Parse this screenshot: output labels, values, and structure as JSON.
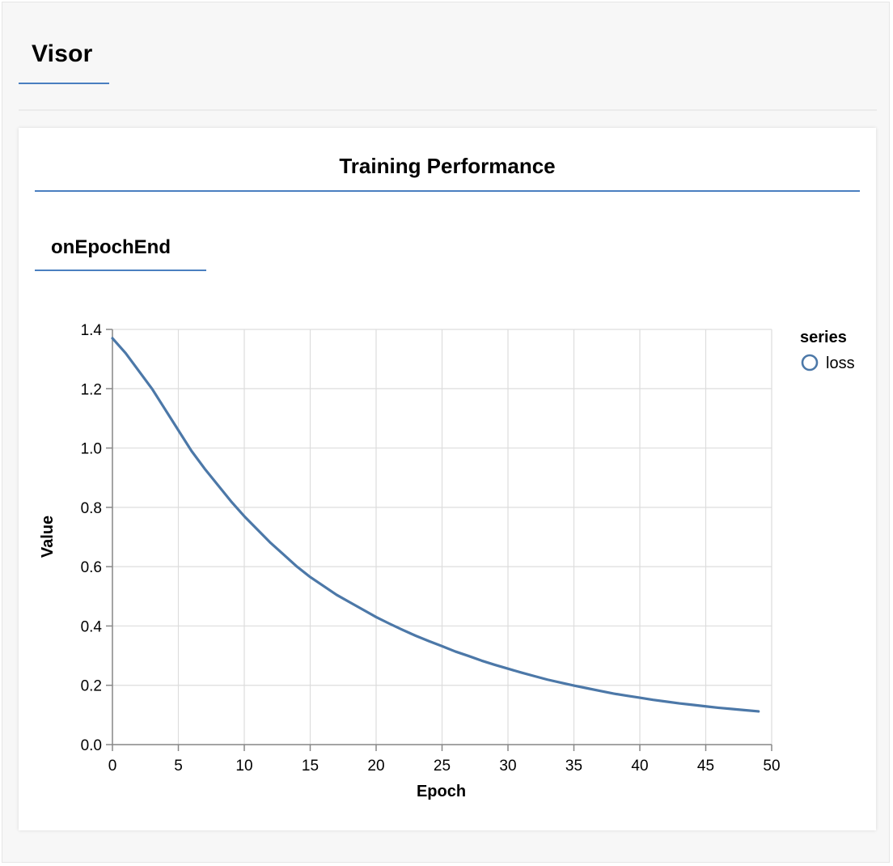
{
  "visor": {
    "title": "Visor"
  },
  "card": {
    "title": "Training Performance",
    "surface_label": "onEpochEnd"
  },
  "colors": {
    "accent": "#4a7fc0",
    "series_loss": "#4c78a8",
    "grid": "#dddddd",
    "axis": "#888888"
  },
  "chart_data": {
    "type": "line",
    "xlabel": "Epoch",
    "ylabel": "Value",
    "xlim": [
      0,
      50
    ],
    "ylim": [
      0,
      1.4
    ],
    "xticks": [
      "0",
      "5",
      "10",
      "15",
      "20",
      "25",
      "30",
      "35",
      "40",
      "45",
      "50"
    ],
    "yticks": [
      "0.0",
      "0.2",
      "0.4",
      "0.6",
      "0.8",
      "1.0",
      "1.2",
      "1.4"
    ],
    "grid": true,
    "legend": {
      "title": "series",
      "placement": "right"
    },
    "series": [
      {
        "name": "loss",
        "x": [
          0,
          1,
          2,
          3,
          4,
          5,
          6,
          7,
          8,
          9,
          10,
          11,
          12,
          13,
          14,
          15,
          16,
          17,
          18,
          19,
          20,
          21,
          22,
          23,
          24,
          25,
          26,
          27,
          28,
          29,
          30,
          31,
          32,
          33,
          34,
          35,
          36,
          37,
          38,
          39,
          40,
          41,
          42,
          43,
          44,
          45,
          46,
          47,
          48,
          49
        ],
        "values": [
          1.37,
          1.32,
          1.26,
          1.2,
          1.13,
          1.06,
          0.99,
          0.93,
          0.875,
          0.82,
          0.77,
          0.725,
          0.68,
          0.64,
          0.6,
          0.565,
          0.535,
          0.505,
          0.48,
          0.455,
          0.43,
          0.408,
          0.387,
          0.367,
          0.349,
          0.332,
          0.314,
          0.299,
          0.283,
          0.269,
          0.256,
          0.243,
          0.231,
          0.219,
          0.209,
          0.199,
          0.19,
          0.181,
          0.172,
          0.165,
          0.158,
          0.151,
          0.145,
          0.139,
          0.134,
          0.129,
          0.124,
          0.12,
          0.116,
          0.112
        ]
      }
    ]
  }
}
